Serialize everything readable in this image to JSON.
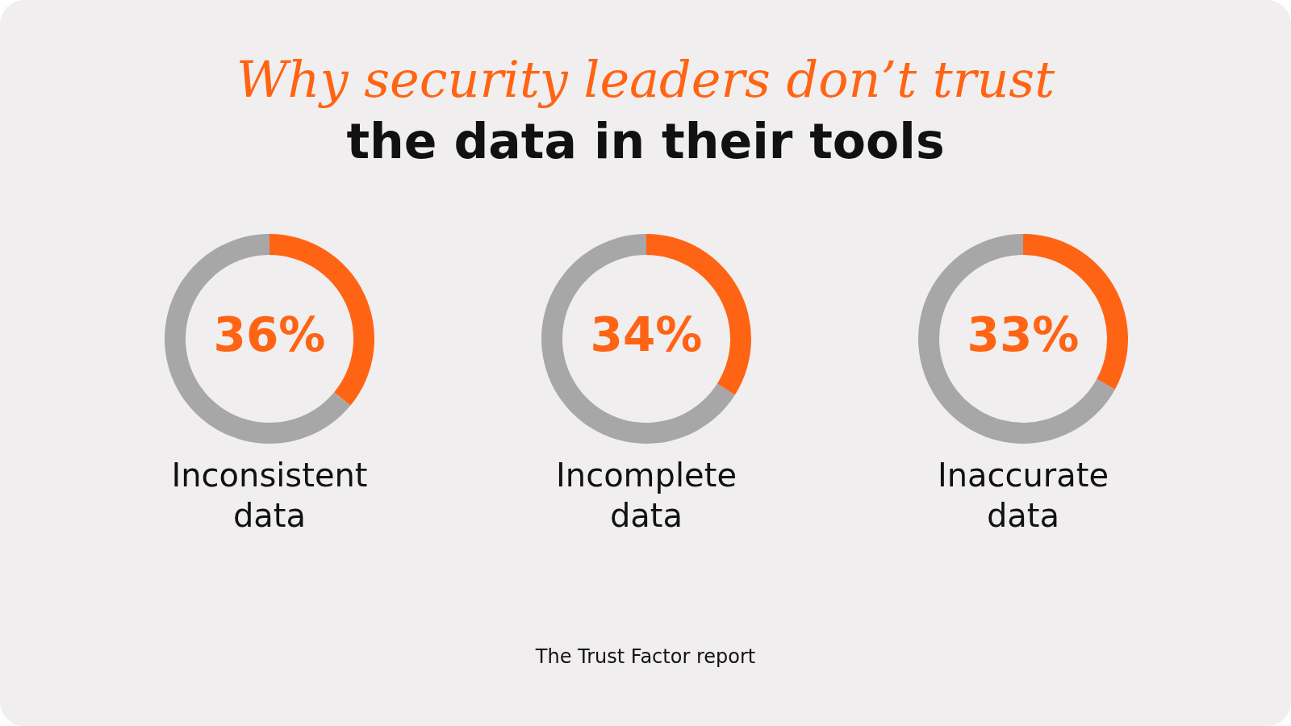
{
  "chart_data": [
    {
      "type": "other",
      "title": "Why security leaders don’t trust",
      "subtitle": "the data in their tools",
      "annotations": [
        "The Trust Factor report"
      ]
    },
    {
      "type": "donut",
      "title": "Inconsistent data",
      "categories": [
        null,
        null
      ],
      "values": [
        36,
        64
      ],
      "colors": [
        "#ff6414",
        "#a7a7a7"
      ],
      "value_labels": [
        "36%",
        null
      ]
    },
    {
      "type": "donut",
      "title": "Incomplete data",
      "categories": [
        null,
        null
      ],
      "values": [
        34,
        66
      ],
      "colors": [
        "#ff6414",
        "#a7a7a7"
      ],
      "value_labels": [
        "34%",
        null
      ]
    },
    {
      "type": "donut",
      "title": "Inaccurate data",
      "categories": [
        null,
        null
      ],
      "values": [
        33,
        67
      ],
      "colors": [
        "#ff6414",
        "#a7a7a7"
      ],
      "value_labels": [
        "33%",
        null
      ]
    }
  ]
}
